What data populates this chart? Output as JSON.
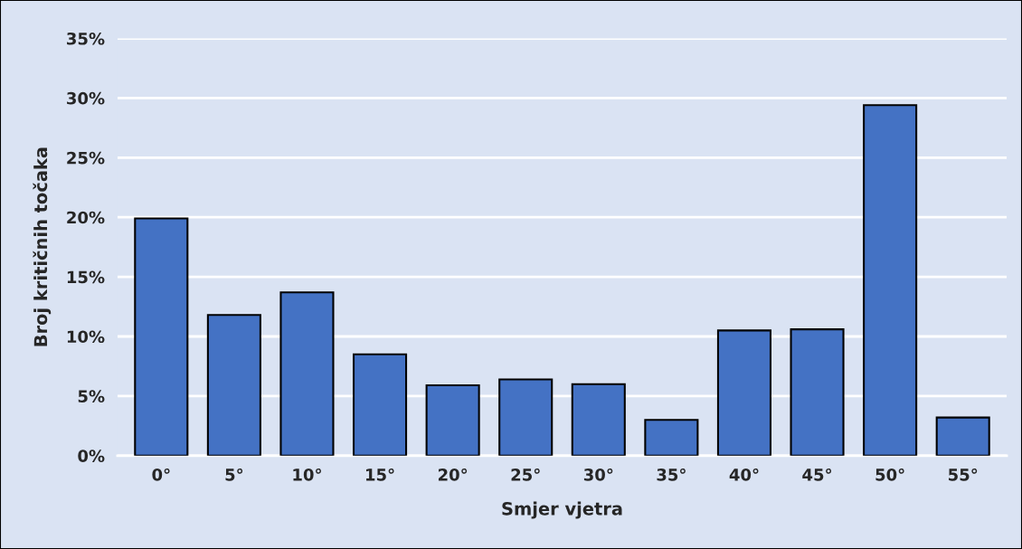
{
  "chart_data": {
    "type": "bar",
    "xlabel": "Smjer vjetra",
    "ylabel": "Broj kritičnih točaka",
    "categories": [
      "0°",
      "5°",
      "10°",
      "15°",
      "20°",
      "25°",
      "30°",
      "35°",
      "40°",
      "45°",
      "50°",
      "55°"
    ],
    "values": [
      19.9,
      11.8,
      13.7,
      8.5,
      5.9,
      6.4,
      6.0,
      3.0,
      10.5,
      10.6,
      29.4,
      3.2
    ],
    "color": "#4472c4",
    "ylim": [
      0,
      35
    ],
    "yticks": [
      {
        "value": 0,
        "label": "0%"
      },
      {
        "value": 5,
        "label": "5%"
      },
      {
        "value": 10,
        "label": "10%"
      },
      {
        "value": 15,
        "label": "15%"
      },
      {
        "value": 20,
        "label": "20%"
      },
      {
        "value": 25,
        "label": "25%"
      },
      {
        "value": 30,
        "label": "30%"
      },
      {
        "value": 35,
        "label": "35%"
      }
    ],
    "grid": "y"
  }
}
